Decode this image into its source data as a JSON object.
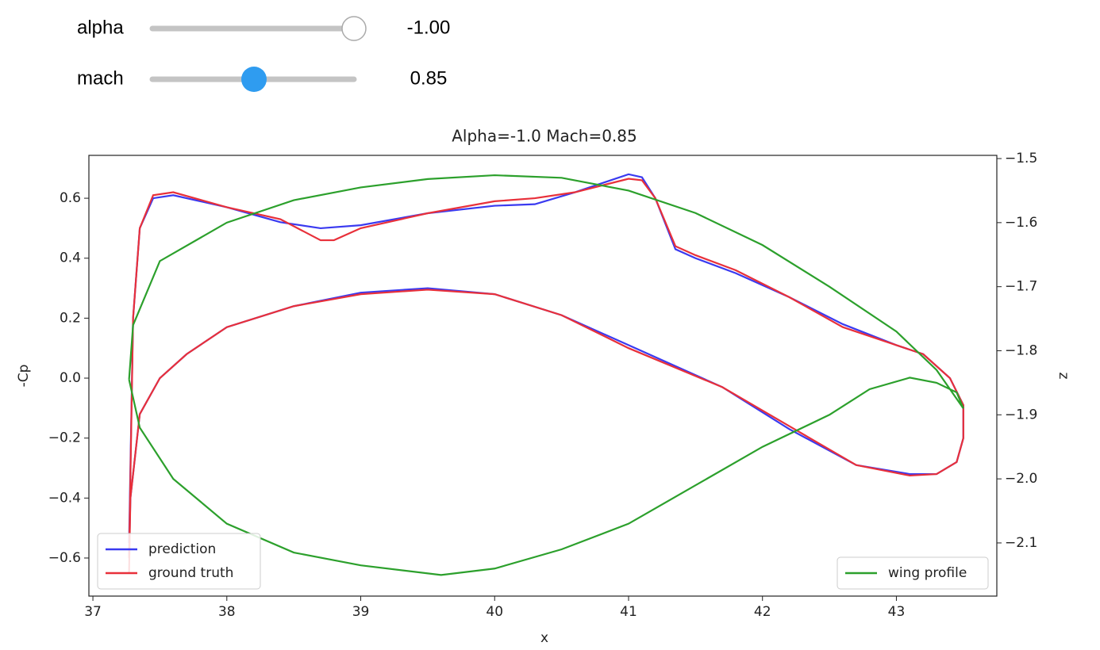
{
  "widgets": [
    {
      "label": "alpha",
      "readout": "-1.00"
    },
    {
      "label": "mach",
      "readout": "0.85"
    }
  ],
  "chart_data": {
    "type": "line",
    "title": "Alpha=-1.0 Mach=0.85",
    "xlabel": "x",
    "ylabel": "-Cp",
    "y2label": "z",
    "xlim": [
      36.97,
      43.75
    ],
    "xticks": [
      37,
      38,
      39,
      40,
      41,
      42,
      43
    ],
    "ylim": [
      -0.727,
      0.743
    ],
    "yticks": [
      {
        "value": -0.6,
        "label": "−0.6"
      },
      {
        "value": -0.4,
        "label": "−0.4"
      },
      {
        "value": -0.2,
        "label": "−0.2"
      },
      {
        "value": 0,
        "label": "0.0"
      },
      {
        "value": 0.2,
        "label": "0.2"
      },
      {
        "value": 0.4,
        "label": "0.4"
      },
      {
        "value": 0.6,
        "label": "0.6"
      }
    ],
    "y2lim": [
      -2.183,
      -1.495
    ],
    "y2ticks": [
      {
        "value": -2.1,
        "label": "−2.1"
      },
      {
        "value": -2.0,
        "label": "−2.0"
      },
      {
        "value": -1.9,
        "label": "−1.9"
      },
      {
        "value": -1.8,
        "label": "−1.8"
      },
      {
        "value": -1.7,
        "label": "−1.7"
      },
      {
        "value": -1.6,
        "label": "−1.6"
      },
      {
        "value": -1.5,
        "label": "−1.5"
      }
    ],
    "legend": "lower left",
    "legend2": "lower right",
    "series": [
      {
        "name": "prediction",
        "color": "#3a3af0",
        "x": [
          37.27,
          37.3,
          37.35,
          37.45,
          37.6,
          38.0,
          38.4,
          38.7,
          39.0,
          39.5,
          40.0,
          40.3,
          40.6,
          41.0,
          41.1,
          41.2,
          41.35,
          41.5,
          41.8,
          42.2,
          42.6,
          43.0,
          43.2,
          43.4,
          43.5,
          43.5,
          43.45,
          43.3,
          43.1,
          42.7,
          42.2,
          41.7,
          41.0,
          40.5,
          40.0,
          39.5,
          39.0,
          38.5,
          38.0,
          37.7,
          37.5,
          37.35,
          37.28,
          37.27
        ],
        "values": [
          -0.55,
          0.2,
          0.5,
          0.6,
          0.61,
          0.57,
          0.52,
          0.5,
          0.51,
          0.55,
          0.575,
          0.58,
          0.62,
          0.68,
          0.67,
          0.6,
          0.43,
          0.4,
          0.35,
          0.27,
          0.18,
          0.11,
          0.08,
          0.0,
          -0.09,
          -0.2,
          -0.28,
          -0.32,
          -0.32,
          -0.29,
          -0.17,
          -0.03,
          0.11,
          0.21,
          0.28,
          0.3,
          0.285,
          0.24,
          0.17,
          0.08,
          0.0,
          -0.12,
          -0.4,
          -0.6
        ]
      },
      {
        "name": "ground truth",
        "color": "#e8303a",
        "x": [
          37.27,
          37.3,
          37.35,
          37.45,
          37.6,
          38.0,
          38.4,
          38.7,
          38.8,
          39.0,
          39.5,
          40.0,
          40.3,
          40.6,
          41.0,
          41.1,
          41.2,
          41.35,
          41.5,
          41.8,
          42.2,
          42.6,
          43.0,
          43.2,
          43.4,
          43.5,
          43.5,
          43.45,
          43.3,
          43.1,
          42.7,
          42.2,
          41.7,
          41.0,
          40.5,
          40.0,
          39.5,
          39.0,
          38.5,
          38.0,
          37.7,
          37.5,
          37.35,
          37.28,
          37.27
        ],
        "values": [
          -0.6,
          0.2,
          0.5,
          0.61,
          0.62,
          0.57,
          0.53,
          0.46,
          0.46,
          0.5,
          0.55,
          0.59,
          0.6,
          0.62,
          0.665,
          0.66,
          0.6,
          0.44,
          0.41,
          0.36,
          0.27,
          0.17,
          0.11,
          0.08,
          0.0,
          -0.09,
          -0.2,
          -0.28,
          -0.32,
          -0.325,
          -0.29,
          -0.16,
          -0.03,
          0.1,
          0.21,
          0.28,
          0.295,
          0.28,
          0.24,
          0.17,
          0.08,
          0.0,
          -0.12,
          -0.4,
          -0.65
        ]
      },
      {
        "name": "wing profile",
        "color": "#2ca02c",
        "axis": "y2",
        "x": [
          37.27,
          37.3,
          37.5,
          38.0,
          38.5,
          39.0,
          39.5,
          40.0,
          40.5,
          41.0,
          41.5,
          42.0,
          42.5,
          43.0,
          43.3,
          43.5,
          43.45,
          43.3,
          43.1,
          42.8,
          42.5,
          42.0,
          41.5,
          41.0,
          40.5,
          40.0,
          39.6,
          39.0,
          38.5,
          38.0,
          37.6,
          37.35,
          37.27
        ],
        "values": [
          -1.845,
          -1.76,
          -1.66,
          -1.6,
          -1.565,
          -1.545,
          -1.532,
          -1.526,
          -1.53,
          -1.55,
          -1.585,
          -1.635,
          -1.7,
          -1.77,
          -1.83,
          -1.89,
          -1.865,
          -1.85,
          -1.842,
          -1.86,
          -1.9,
          -1.95,
          -2.01,
          -2.07,
          -2.11,
          -2.14,
          -2.15,
          -2.135,
          -2.115,
          -2.07,
          -2.0,
          -1.92,
          -1.845
        ]
      }
    ]
  }
}
